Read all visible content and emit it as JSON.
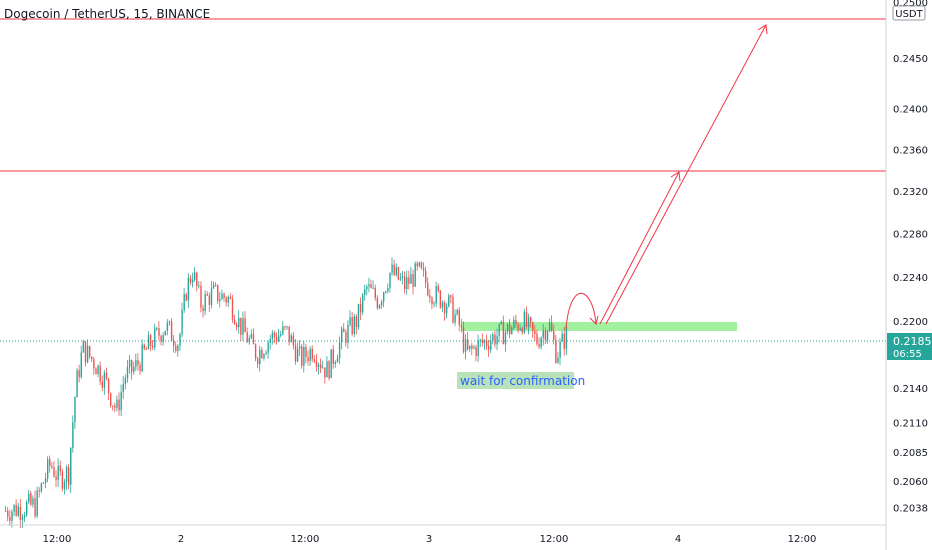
{
  "header": {
    "symbol_title": "Dogecoin / TetherUS, 15, BINANCE"
  },
  "price_axis": {
    "currency": "USDT",
    "ticks": [
      "0.2500",
      "0.2450",
      "0.2400",
      "0.2360",
      "0.2320",
      "0.2280",
      "0.2240",
      "0.2200",
      "0.2140",
      "0.2110",
      "0.2085",
      "0.2060",
      "0.2038"
    ],
    "current_price": "0.2185",
    "countdown": "06:55"
  },
  "time_axis": {
    "ticks": [
      "12:00",
      "2",
      "12:00",
      "3",
      "12:00",
      "4",
      "12:00"
    ]
  },
  "annotation": {
    "text": "wait for confirmation"
  },
  "colors": {
    "up": "#26a69a",
    "down": "#ef5350",
    "line": "#f23645",
    "zone": "#90ee90",
    "price_tag": "#26a69a",
    "label_bg": "#b2dfb0",
    "label_text": "#2962ff"
  },
  "chart_data": {
    "type": "candlestick",
    "title": "Dogecoin / TetherUS, 15, BINANCE",
    "y_unit": "USDT",
    "y_scale": "log",
    "ylim": [
      0.203,
      0.2505
    ],
    "x_ticks": [
      "12:00",
      "2",
      "12:00",
      "3",
      "12:00",
      "4",
      "12:00"
    ],
    "y_ticks": [
      0.25,
      0.245,
      0.24,
      0.236,
      0.232,
      0.228,
      0.224,
      0.22,
      0.214,
      0.211,
      0.2085,
      0.206,
      0.2038
    ],
    "last_price": 0.2185,
    "horizontal_levels": [
      0.2484,
      0.2338
    ],
    "resistance_zone": [
      0.2198,
      0.2203
    ],
    "projection_targets": [
      0.2338,
      0.2484
    ],
    "grid": false,
    "annotations": [
      "wait for confirmation"
    ]
  }
}
